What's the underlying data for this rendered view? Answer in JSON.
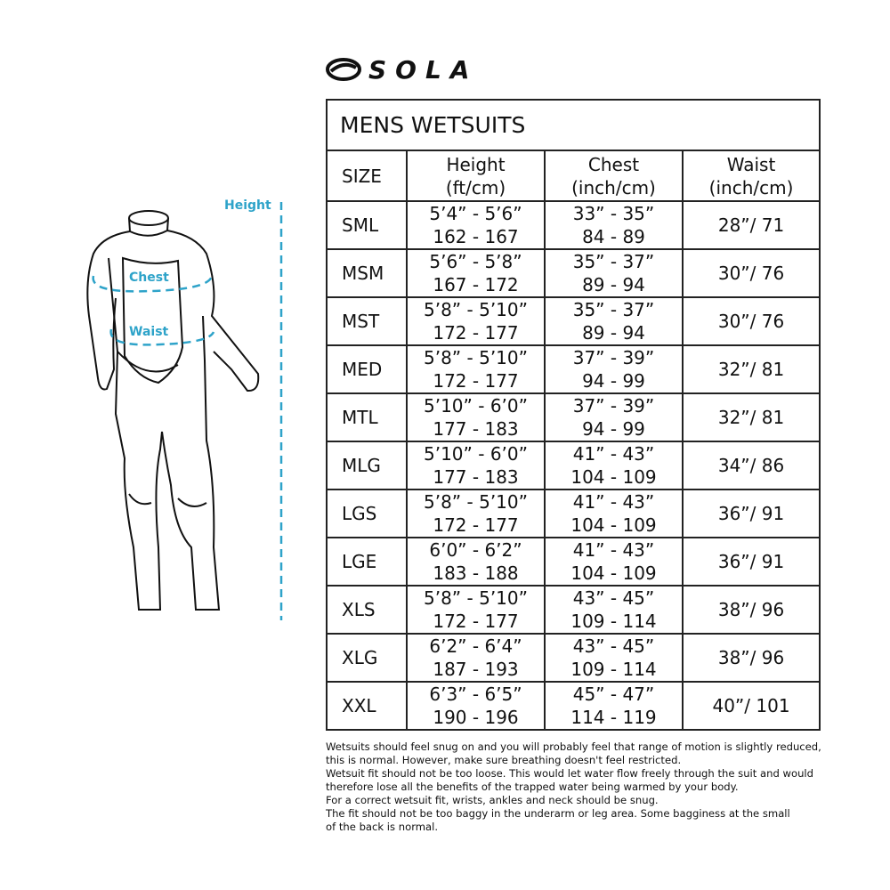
{
  "brand": {
    "logo_text": "SOLA"
  },
  "figure": {
    "labels": {
      "height": "Height",
      "chest": "Chest",
      "waist": "Waist"
    },
    "accent_color": "#2ea3c9"
  },
  "table": {
    "title": "MENS WETSUITS",
    "headers": [
      {
        "line1": "SIZE",
        "line2": ""
      },
      {
        "line1": "Height",
        "line2": "(ft/cm)"
      },
      {
        "line1": "Chest",
        "line2": "(inch/cm)"
      },
      {
        "line1": "Waist",
        "line2": "(inch/cm)"
      }
    ],
    "rows": [
      {
        "size": "SML",
        "height_ft": "5’4” - 5’6”",
        "height_cm": "162 - 167",
        "chest_in": "33” - 35”",
        "chest_cm": "84 - 89",
        "waist": "28”/ 71"
      },
      {
        "size": "MSM",
        "height_ft": "5’6” - 5’8”",
        "height_cm": "167 - 172",
        "chest_in": "35” - 37”",
        "chest_cm": "89 - 94",
        "waist": "30”/ 76"
      },
      {
        "size": "MST",
        "height_ft": "5’8” - 5’10”",
        "height_cm": "172 - 177",
        "chest_in": "35” - 37”",
        "chest_cm": "89 - 94",
        "waist": "30”/ 76"
      },
      {
        "size": "MED",
        "height_ft": "5’8” - 5’10”",
        "height_cm": "172 - 177",
        "chest_in": "37” - 39”",
        "chest_cm": "94 - 99",
        "waist": "32”/ 81"
      },
      {
        "size": "MTL",
        "height_ft": "5’10” - 6’0”",
        "height_cm": "177 - 183",
        "chest_in": "37” - 39”",
        "chest_cm": "94 - 99",
        "waist": "32”/ 81"
      },
      {
        "size": "MLG",
        "height_ft": "5’10” - 6’0”",
        "height_cm": "177 - 183",
        "chest_in": "41” - 43”",
        "chest_cm": "104 - 109",
        "waist": "34”/ 86"
      },
      {
        "size": "LGS",
        "height_ft": "5’8” - 5’10”",
        "height_cm": "172 - 177",
        "chest_in": "41” - 43”",
        "chest_cm": "104 - 109",
        "waist": "36”/ 91"
      },
      {
        "size": "LGE",
        "height_ft": "6’0” - 6’2”",
        "height_cm": "183 - 188",
        "chest_in": "41” - 43”",
        "chest_cm": "104 - 109",
        "waist": "36”/ 91"
      },
      {
        "size": "XLS",
        "height_ft": "5’8” - 5’10”",
        "height_cm": "172 - 177",
        "chest_in": "43” - 45”",
        "chest_cm": "109 - 114",
        "waist": "38”/ 96"
      },
      {
        "size": "XLG",
        "height_ft": "6’2” - 6’4”",
        "height_cm": "187 - 193",
        "chest_in": "43” - 45”",
        "chest_cm": "109 - 114",
        "waist": "38”/ 96"
      },
      {
        "size": "XXL",
        "height_ft": "6’3” - 6’5”",
        "height_cm": "190 - 196",
        "chest_in": "45” - 47”",
        "chest_cm": "114 - 119",
        "waist": "40”/ 101"
      }
    ]
  },
  "notes": [
    "Wetsuits should feel snug on and you will probably feel that range of motion is slightly reduced,",
    "this is normal. However, make sure breathing doesn't feel restricted.",
    "Wetsuit fit should not be too loose. This would let water flow freely through the suit and would",
    "therefore lose all the benefits of the trapped water being warmed by your body.",
    "For a correct wetsuit fit, wrists, ankles and neck should be snug.",
    "The fit should not be too baggy in the underarm or leg area. Some bagginess at the small",
    "of the back is normal."
  ]
}
